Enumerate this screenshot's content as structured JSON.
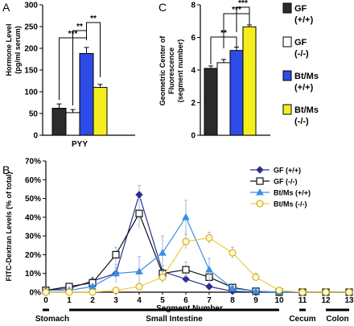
{
  "chart_data": [
    {
      "panel": "A",
      "type": "bar",
      "ylabel": "Hormone Level (pg/ml serum)",
      "xlabel": "PYY",
      "ylim": [
        0,
        300
      ],
      "yticks": [
        0,
        50,
        100,
        150,
        200,
        250,
        300
      ],
      "bars": [
        {
          "group": "GF (+/+)",
          "value": 62,
          "error": 10
        },
        {
          "group": "GF (-/-)",
          "value": 52,
          "error": 7
        },
        {
          "group": "Bt/Ms (+/+)",
          "value": 188,
          "error": 14
        },
        {
          "group": "Bt/Ms (-/-)",
          "value": 110,
          "error": 7
        }
      ],
      "significance": [
        {
          "from": 0,
          "to": 2,
          "label": "***"
        },
        {
          "from": 1,
          "to": 2,
          "label": "**"
        },
        {
          "from": 2,
          "to": 3,
          "label": "**"
        }
      ]
    },
    {
      "panel": "C",
      "type": "bar",
      "ylabel": "Geometric Center of Fluorescence (segment number)",
      "ylim": [
        0,
        8
      ],
      "yticks": [
        0,
        2,
        4,
        6,
        8
      ],
      "bars": [
        {
          "group": "GF (+/+)",
          "value": 4.1,
          "error": 0.15
        },
        {
          "group": "GF (-/-)",
          "value": 4.45,
          "error": 0.2
        },
        {
          "group": "Bt/Ms (+/+)",
          "value": 5.2,
          "error": 0.2
        },
        {
          "group": "Bt/Ms (-/-)",
          "value": 6.65,
          "error": 0.12
        }
      ],
      "significance": [
        {
          "from": 0,
          "to": 2,
          "label": "**"
        },
        {
          "from": 1,
          "to": 3,
          "label": "***"
        },
        {
          "from": 2,
          "to": 3,
          "label": "***"
        }
      ]
    },
    {
      "panel": "B",
      "type": "line",
      "ylabel": "FITC-Dextran Levels (% of total)",
      "xlabel": "Segment Number",
      "xlim": [
        0,
        13
      ],
      "ylim": [
        0,
        70
      ],
      "yticks": [
        0,
        10,
        20,
        30,
        40,
        50,
        60,
        70
      ],
      "ytick_suffix": "%",
      "x": [
        0,
        1,
        2,
        3,
        4,
        5,
        6,
        7,
        8,
        9,
        10,
        11,
        12,
        13
      ],
      "series": [
        {
          "name": "GF (+/+)",
          "values": [
            1,
            2,
            6,
            10,
            52,
            11,
            7,
            3,
            0.5,
            0,
            0,
            0,
            0,
            0
          ],
          "errors": [
            0.5,
            1,
            2,
            3,
            5,
            3,
            2,
            1,
            0.5,
            0,
            0,
            0,
            0,
            0
          ]
        },
        {
          "name": "GF (-/-)",
          "values": [
            1,
            3,
            5,
            20,
            42,
            10,
            12,
            8,
            2.5,
            0.5,
            0,
            0,
            0,
            0
          ],
          "errors": [
            0.5,
            1,
            2,
            4,
            8,
            4,
            4,
            3,
            1,
            0.5,
            0,
            0,
            0,
            0
          ]
        },
        {
          "name": "Bt/Ms (+/+)",
          "values": [
            1,
            1,
            3,
            10,
            11,
            21,
            40,
            12,
            2,
            0.5,
            0,
            0,
            0,
            0
          ],
          "errors": [
            0.5,
            0.5,
            1,
            5,
            8,
            9,
            9,
            6,
            1.5,
            0.5,
            0,
            0,
            0,
            0
          ]
        },
        {
          "name": "Bt/Ms (-/-)",
          "values": [
            0,
            0,
            0,
            1,
            3,
            8,
            27,
            29,
            21,
            8,
            1,
            0,
            0,
            0
          ],
          "errors": [
            0,
            0,
            0,
            0.5,
            1,
            3,
            4,
            3,
            3,
            2,
            0.5,
            0,
            0,
            0
          ]
        }
      ],
      "regions": [
        {
          "label": "Stomach",
          "from": 0,
          "to": 0
        },
        {
          "label": "Small Intestine",
          "from": 1,
          "to": 10
        },
        {
          "label": "Cecum",
          "from": 11,
          "to": 11
        },
        {
          "label": "Colon",
          "from": 12,
          "to": 13
        }
      ]
    }
  ],
  "colors": {
    "gf_wt": "#2b2b2b",
    "gf_ko": "#ffffff",
    "btms_wt": "#2d4be6",
    "btms_ko": "#f4ee1c",
    "line_gf_wt": "#2a2f8f",
    "line_gf_ko": "#111111",
    "line_btms_wt": "#3a8ee6",
    "line_btms_ko": "#f1cc3a",
    "error": "#9cb9d8"
  },
  "panels": {
    "a_label": "A",
    "b_label": "B",
    "c_label": "C"
  },
  "legend_top": [
    {
      "line1": "GF",
      "line2": "(+/+)",
      "color_key": "gf_wt"
    },
    {
      "line1": "GF",
      "line2": "(-/-)",
      "color_key": "gf_ko"
    },
    {
      "line1": "Bt/Ms",
      "line2": "(+/+)",
      "color_key": "btms_wt"
    },
    {
      "line1": "Bt/Ms",
      "line2": "(-/-)",
      "color_key": "btms_ko"
    }
  ],
  "legend_bottom": [
    {
      "label": "GF (+/+)",
      "marker": "diamond",
      "color_key": "line_gf_wt"
    },
    {
      "label": "GF (-/-)",
      "marker": "square",
      "color_key": "line_gf_ko"
    },
    {
      "label": "Bt/Ms (+/+)",
      "marker": "triangle",
      "color_key": "line_btms_wt"
    },
    {
      "label": "Bt/Ms (-/-)",
      "marker": "circle",
      "color_key": "line_btms_ko"
    }
  ]
}
